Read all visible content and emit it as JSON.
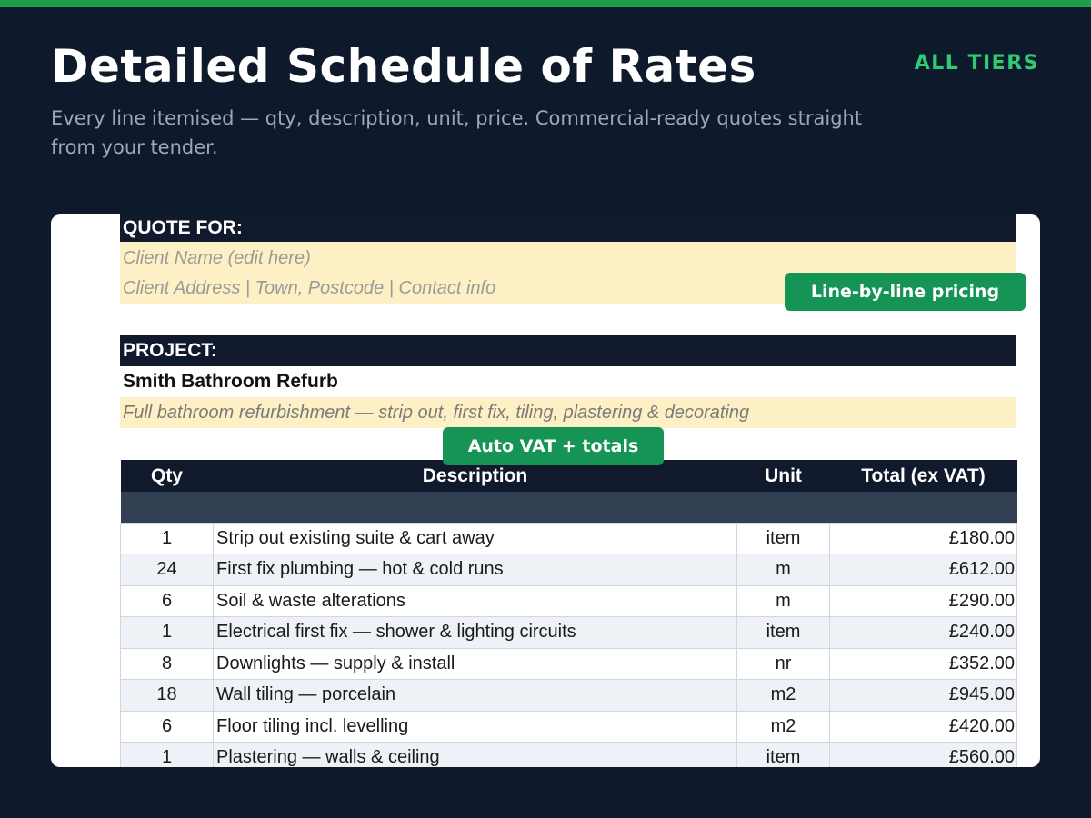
{
  "header": {
    "title": "Detailed Schedule of Rates",
    "tier_label": "ALL TIERS",
    "subtitle": "Every line itemised — qty, description, unit, price. Commercial-ready quotes straight from your tender."
  },
  "colors": {
    "background": "#0e1a2b",
    "accent_green": "#1f9d4b",
    "tier_green": "#2ecc71",
    "badge_green": "#159455",
    "sheet_header": "#111a2c",
    "highlight_yellow": "#fdf0c4"
  },
  "quote": {
    "section_label": "QUOTE FOR:",
    "client_name": "Client Name (edit here)",
    "client_address": "Client Address  |  Town, Postcode  |  Contact info"
  },
  "project": {
    "section_label": "PROJECT:",
    "name": "Smith Bathroom Refurb",
    "description": "Full bathroom refurbishment — strip out, first fix, tiling, plastering & decorating"
  },
  "badges": {
    "line_pricing": "Line-by-line pricing",
    "auto_vat": "Auto VAT + totals"
  },
  "table": {
    "headers": {
      "qty": "Qty",
      "description": "Description",
      "unit": "Unit",
      "total": "Total (ex VAT)"
    },
    "rows": [
      {
        "qty": "1",
        "description": "Strip out existing suite & cart away",
        "unit": "item",
        "total": "£180.00"
      },
      {
        "qty": "24",
        "description": "First fix plumbing — hot & cold runs",
        "unit": "m",
        "total": "£612.00"
      },
      {
        "qty": "6",
        "description": "Soil & waste alterations",
        "unit": "m",
        "total": "£290.00"
      },
      {
        "qty": "1",
        "description": "Electrical first fix — shower & lighting circuits",
        "unit": "item",
        "total": "£240.00"
      },
      {
        "qty": "8",
        "description": "Downlights — supply & install",
        "unit": "nr",
        "total": "£352.00"
      },
      {
        "qty": "18",
        "description": "Wall tiling — porcelain",
        "unit": "m2",
        "total": "£945.00"
      },
      {
        "qty": "6",
        "description": "Floor tiling incl. levelling",
        "unit": "m2",
        "total": "£420.00"
      },
      {
        "qty": "1",
        "description": "Plastering — walls & ceiling",
        "unit": "item",
        "total": "£560.00"
      }
    ]
  }
}
